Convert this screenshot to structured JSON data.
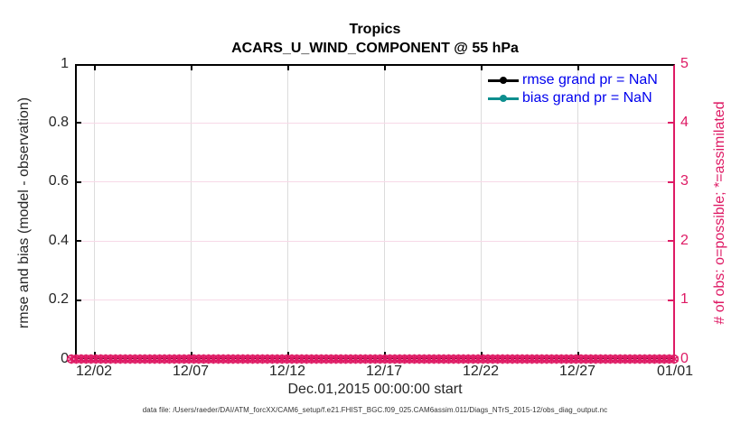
{
  "title": {
    "line1": "Tropics",
    "line2": "ACARS_U_WIND_COMPONENT @ 55 hPa"
  },
  "legend": {
    "items": [
      {
        "label": "rmse grand pr = NaN",
        "marker": "filled-circle-on-line",
        "color": "#000000"
      },
      {
        "label": "bias grand pr = NaN",
        "marker": "filled-circle-on-line",
        "color": "#0d8e8e"
      }
    ]
  },
  "axes": {
    "left": {
      "label": "rmse and bias (model - observation)",
      "ticks": [
        "0",
        "0.2",
        "0.4",
        "0.6",
        "0.8",
        "1"
      ],
      "color": "#000000"
    },
    "right": {
      "label": "# of obs: o=possible; *=assimilated",
      "ticks": [
        "0",
        "1",
        "2",
        "3",
        "4",
        "5"
      ],
      "color": "#de1a64"
    },
    "x": {
      "label": "Dec.01,2015 00:00:00 start",
      "ticks": [
        "12/02",
        "12/07",
        "12/12",
        "12/17",
        "12/22",
        "12/27",
        "01/01"
      ]
    }
  },
  "footnote": "data file: /Users/raeder/DAI/ATM_forcXX/CAM6_setup/f.e21.FHIST_BGC.f09_025.CAM6assim.011/Diags_NTrS_2015-12/obs_diag_output.nc",
  "colors": {
    "obs_pink": "#de1a64",
    "obs_grid_pink": "#f7d9e7",
    "bias_teal": "#0d8e8e",
    "legend_blue": "#0000ee",
    "grid_gray": "#dcdcdc",
    "tick_label": "#262626"
  },
  "chart_data": {
    "type": "line",
    "title": "Tropics",
    "subtitle": "ACARS_U_WIND_COMPONENT @ 55 hPa",
    "x_axis": {
      "start": "Dec.01,2015 00:00:00",
      "end": "01/01",
      "tick_labels": [
        "12/02",
        "12/07",
        "12/12",
        "12/17",
        "12/22",
        "12/27",
        "01/01"
      ],
      "label": "Dec.01,2015 00:00:00 start"
    },
    "left_axis": {
      "label": "rmse and bias (model - observation)",
      "ylim": [
        0,
        1
      ],
      "tick_step": 0.2
    },
    "right_axis": {
      "label": "# of obs: o=possible; *=assimilated",
      "ylim": [
        0,
        5
      ],
      "tick_step": 1
    },
    "grid": true,
    "legend_position": "top-right-inside",
    "series": [
      {
        "name": "rmse grand pr",
        "axis": "left",
        "summary_value": "NaN",
        "color": "#000000",
        "marker": "filled-circle",
        "values": "all-NaN (no line drawn)"
      },
      {
        "name": "bias grand pr",
        "axis": "left",
        "summary_value": "NaN",
        "color": "#0d8e8e",
        "marker": "filled-circle",
        "values": "all-NaN (no line drawn)"
      },
      {
        "name": "# of obs possible",
        "axis": "right",
        "marker": "o",
        "color": "#de1a64",
        "constant_value": 0,
        "n_points": 124
      },
      {
        "name": "# of obs assimilated",
        "axis": "right",
        "marker": "*",
        "color": "#de1a64",
        "constant_value": 0,
        "n_points": 124
      }
    ]
  }
}
